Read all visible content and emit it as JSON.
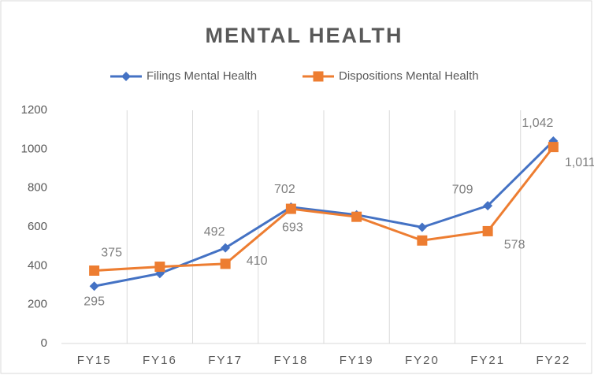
{
  "chart_data": {
    "type": "line",
    "title": "MENTAL HEALTH",
    "categories": [
      "FY15",
      "FY16",
      "FY17",
      "FY18",
      "FY19",
      "FY20",
      "FY21",
      "FY22"
    ],
    "series": [
      {
        "name": "Filings Mental Health",
        "color": "#4472c4",
        "marker": "diamond",
        "values": [
          295,
          360,
          492,
          702,
          662,
          598,
          709,
          1042
        ],
        "value_labels": [
          "295",
          null,
          "492",
          "702",
          null,
          null,
          "709",
          "1,042"
        ]
      },
      {
        "name": "Dispositions Mental Health",
        "color": "#ed7d31",
        "marker": "square",
        "values": [
          375,
          395,
          410,
          693,
          652,
          530,
          578,
          1011
        ],
        "value_labels": [
          "375",
          null,
          "410",
          "693",
          null,
          null,
          "578",
          "1,011"
        ]
      }
    ],
    "ylim": [
      0,
      1200
    ],
    "yticks": [
      0,
      200,
      400,
      600,
      800,
      1000,
      1200
    ],
    "grid": true,
    "legend": "top"
  }
}
